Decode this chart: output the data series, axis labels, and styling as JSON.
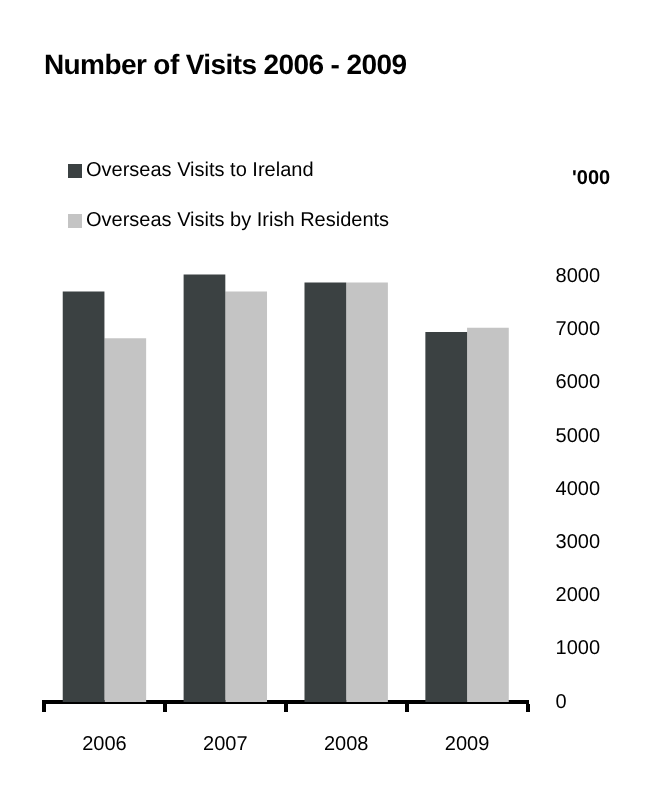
{
  "chart_data": {
    "type": "bar",
    "title": "Number of Visits  2006 - 2009",
    "ylabel": "'000",
    "categories": [
      "2006",
      "2007",
      "2008",
      "2009"
    ],
    "series": [
      {
        "name": "Overseas Visits to Ireland",
        "color": "#3b4142",
        "values": [
          7720,
          8040,
          7890,
          6960
        ]
      },
      {
        "name": "Overseas Visits by Irish Residents",
        "color": "#c4c4c4",
        "values": [
          6840,
          7720,
          7890,
          7040
        ]
      }
    ],
    "ylim": [
      0,
      8200
    ],
    "yticks": [
      0,
      1000,
      2000,
      3000,
      4000,
      5000,
      6000,
      7000,
      8000
    ],
    "grid": false,
    "legend": "top left"
  }
}
